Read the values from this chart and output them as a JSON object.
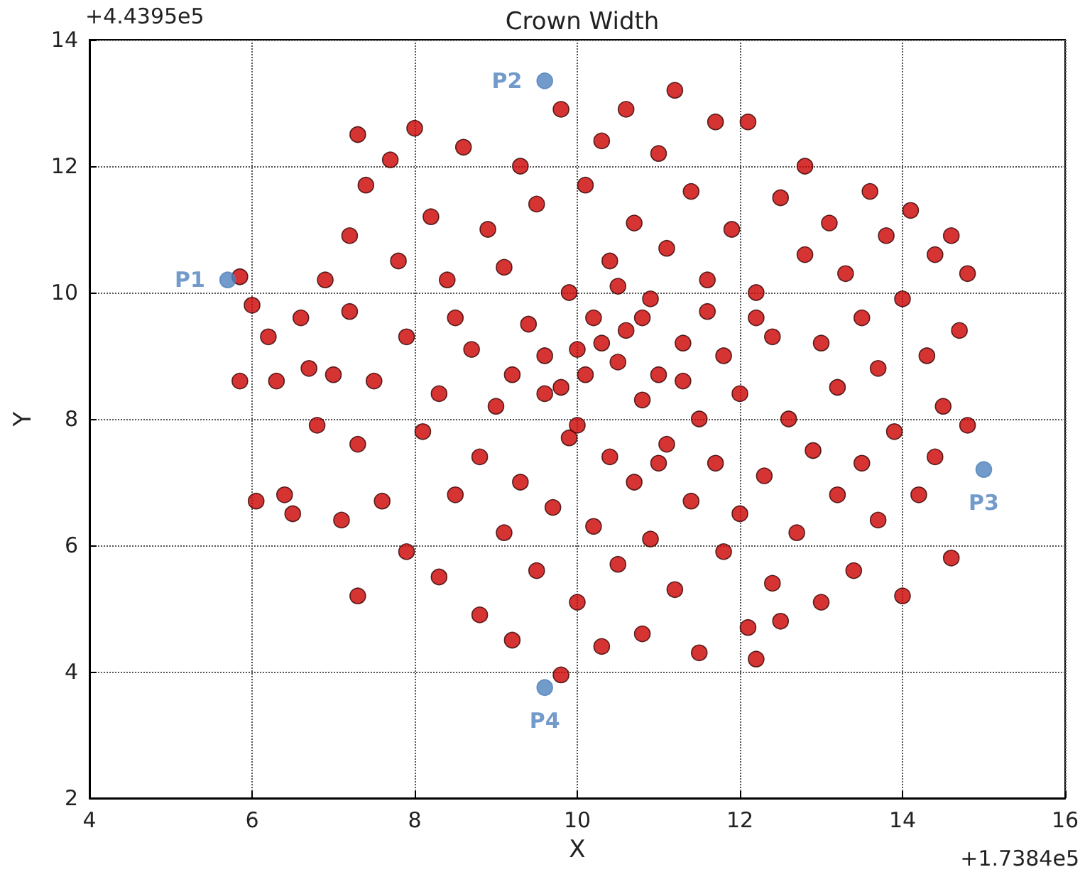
{
  "chart_data": {
    "type": "scatter",
    "title": "Crown Width",
    "xlabel": "X",
    "ylabel": "Y",
    "annotations": [
      "+4.4395e5",
      "+1.7384e5"
    ],
    "xlim": [
      4,
      16
    ],
    "xticks": [
      4,
      6,
      8,
      10,
      12,
      14,
      16
    ],
    "ylim": [
      2,
      14
    ],
    "yticks": [
      2,
      4,
      6,
      8,
      10,
      12,
      14
    ],
    "grid": true,
    "marker": "circle",
    "series": [
      {
        "color": "#cc0000",
        "x": [
          5.85,
          5.85,
          6.0,
          6.05,
          6.2,
          6.3,
          6.4,
          6.5,
          6.6,
          6.7,
          6.8,
          6.9,
          7.0,
          7.1,
          7.2,
          7.2,
          7.3,
          7.3,
          7.3,
          7.4,
          7.5,
          7.6,
          7.7,
          7.8,
          7.9,
          7.9,
          8.0,
          8.1,
          8.2,
          8.3,
          8.3,
          8.4,
          8.5,
          8.6,
          8.7,
          8.8,
          8.8,
          8.9,
          9.0,
          9.1,
          9.1,
          9.2,
          9.3,
          9.3,
          9.4,
          9.5,
          9.5,
          9.6,
          9.7,
          9.8,
          9.8,
          9.9,
          9.9,
          10.0,
          10.0,
          10.1,
          10.1,
          10.2,
          10.2,
          10.3,
          10.3,
          10.4,
          10.4,
          10.5,
          10.5,
          10.6,
          10.6,
          10.7,
          10.7,
          10.8,
          10.8,
          10.9,
          10.9,
          11.0,
          11.0,
          11.1,
          11.1,
          11.2,
          11.2,
          11.3,
          11.4,
          11.4,
          11.5,
          11.5,
          11.6,
          11.7,
          11.7,
          11.8,
          11.8,
          11.9,
          12.0,
          12.0,
          12.1,
          12.1,
          12.2,
          12.2,
          12.3,
          12.4,
          12.4,
          12.5,
          12.5,
          12.6,
          12.7,
          12.8,
          12.8,
          12.9,
          13.0,
          13.0,
          13.1,
          13.2,
          13.2,
          13.3,
          13.4,
          13.5,
          13.5,
          13.6,
          13.7,
          13.7,
          13.8,
          13.9,
          14.0,
          14.0,
          14.1,
          14.2,
          14.3,
          14.4,
          14.4,
          14.5,
          14.6,
          14.6,
          14.7,
          14.8,
          14.8,
          9.6,
          10.3,
          10.8,
          11.3,
          10.0,
          11.6,
          9.2,
          10.5,
          11.0,
          8.5,
          12.2,
          9.8
        ],
        "values": [
          10.25,
          8.6,
          9.8,
          6.7,
          9.3,
          8.6,
          6.8,
          6.5,
          9.6,
          8.8,
          7.9,
          10.2,
          8.7,
          6.4,
          9.7,
          10.9,
          5.2,
          7.6,
          12.5,
          11.7,
          8.6,
          6.7,
          12.1,
          10.5,
          9.3,
          5.9,
          12.6,
          7.8,
          11.2,
          8.4,
          5.5,
          10.2,
          6.8,
          12.3,
          9.1,
          7.4,
          4.9,
          11.0,
          8.2,
          6.2,
          10.4,
          4.5,
          12.0,
          7.0,
          9.5,
          5.6,
          11.4,
          8.4,
          6.6,
          12.9,
          3.95,
          10.0,
          7.7,
          9.1,
          5.1,
          11.7,
          8.7,
          6.3,
          9.6,
          12.4,
          4.4,
          7.4,
          10.5,
          8.9,
          5.7,
          9.4,
          12.9,
          7.0,
          11.1,
          8.3,
          4.6,
          9.9,
          6.1,
          12.2,
          8.7,
          7.6,
          10.7,
          5.3,
          13.2,
          9.2,
          6.7,
          11.6,
          8.0,
          4.3,
          10.2,
          7.3,
          12.7,
          5.9,
          9.0,
          11.0,
          6.5,
          8.4,
          12.7,
          4.7,
          10.0,
          4.2,
          7.1,
          9.3,
          5.4,
          11.5,
          4.8,
          8.0,
          6.2,
          10.6,
          12.0,
          7.5,
          9.2,
          5.1,
          11.1,
          6.8,
          8.5,
          10.3,
          5.6,
          9.6,
          7.3,
          11.6,
          6.4,
          8.8,
          10.9,
          7.8,
          9.9,
          5.2,
          11.3,
          6.8,
          9.0,
          10.6,
          7.4,
          8.2,
          10.9,
          5.8,
          9.4,
          7.9,
          10.3,
          9.0,
          9.2,
          9.6,
          8.6,
          7.9,
          9.7,
          8.7,
          10.1,
          7.3,
          9.6,
          9.6,
          8.5
        ]
      },
      {
        "color": "#4f81bd",
        "x": [
          5.7,
          9.6,
          15.0,
          9.6
        ],
        "values": [
          10.2,
          13.35,
          7.2,
          3.75
        ],
        "value_labels": [
          "P1",
          "P2",
          "P3",
          "P4"
        ]
      }
    ]
  }
}
